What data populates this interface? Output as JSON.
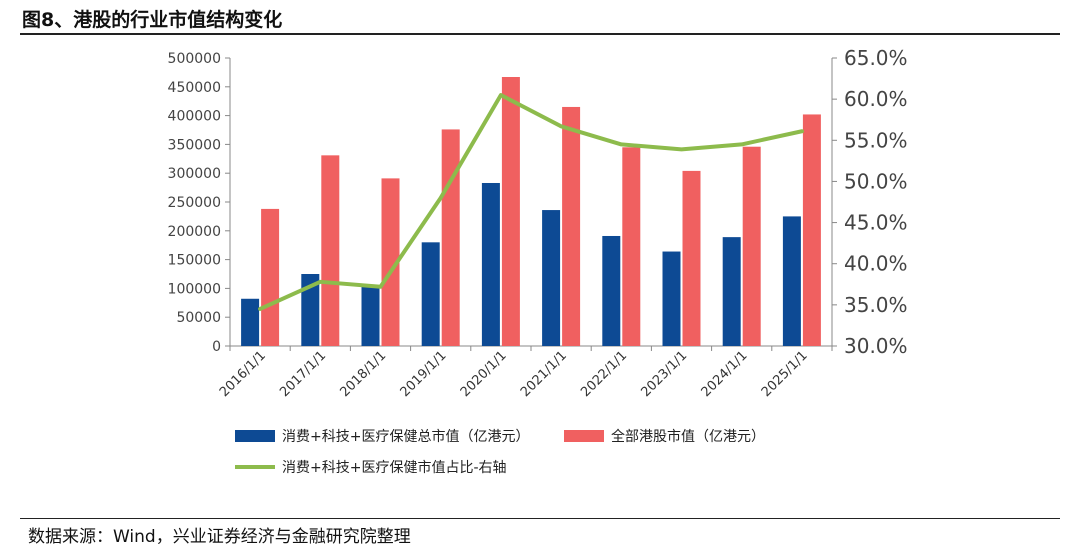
{
  "header": {
    "title": "图8、港股的行业市值结构变化"
  },
  "footer": {
    "source": "数据来源：Wind，兴业证券经济与金融研究院整理"
  },
  "chart_data": {
    "type": "bar",
    "categories": [
      "2016/1/1",
      "2017/1/1",
      "2018/1/1",
      "2019/1/1",
      "2020/1/1",
      "2021/1/1",
      "2022/1/1",
      "2023/1/1",
      "2024/1/1",
      "2025/1/1"
    ],
    "series": [
      {
        "name": "消费+科技+医疗保健总市值（亿港元）",
        "type": "bar",
        "axis": "left",
        "color": "#0d4a94",
        "values": [
          82000,
          125000,
          105000,
          180000,
          283000,
          236000,
          191000,
          164000,
          189000,
          225000
        ]
      },
      {
        "name": "全部港股市值（亿港元）",
        "type": "bar",
        "axis": "left",
        "color": "#f06060",
        "values": [
          238000,
          331000,
          291000,
          376000,
          467000,
          415000,
          345000,
          304000,
          346000,
          402000
        ]
      },
      {
        "name": "消费+科技+医疗保健市值占比-右轴",
        "type": "line",
        "axis": "right",
        "color": "#8dbb4c",
        "values": [
          0.345,
          0.378,
          0.372,
          0.48,
          0.605,
          0.567,
          0.545,
          0.539,
          0.545,
          0.561
        ]
      }
    ],
    "left_axis": {
      "ylim": [
        0,
        500000
      ],
      "ticks": [
        "0",
        "50000",
        "100000",
        "150000",
        "200000",
        "250000",
        "300000",
        "350000",
        "400000",
        "450000",
        "500000"
      ]
    },
    "right_axis": {
      "ylim": [
        0.3,
        0.65
      ],
      "ticks": [
        "30.0%",
        "35.0%",
        "40.0%",
        "45.0%",
        "50.0%",
        "55.0%",
        "60.0%",
        "65.0%"
      ]
    },
    "grid": false,
    "legend_position": "bottom"
  }
}
